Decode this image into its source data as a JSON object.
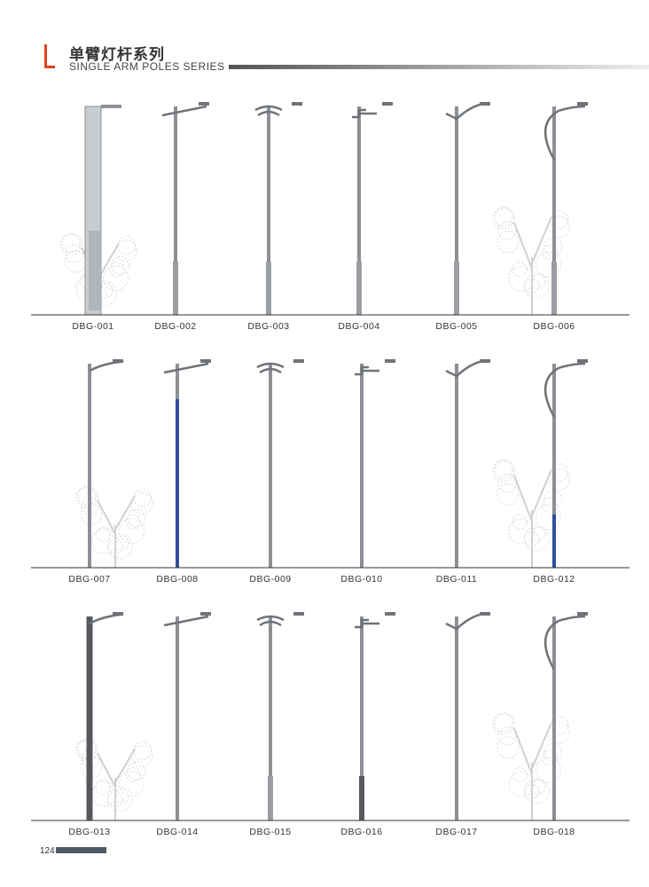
{
  "header": {
    "title_cn": "单臂灯杆系列",
    "title_en": "SINGLE ARM POLES SERIES",
    "accent_color": "#e0431c"
  },
  "rows": [
    {
      "items": [
        "DBG-001",
        "DBG-002",
        "DBG-003",
        "DBG-004",
        "DBG-005",
        "DBG-006"
      ]
    },
    {
      "items": [
        "DBG-007",
        "DBG-008",
        "DBG-009",
        "DBG-010",
        "DBG-011",
        "DBG-012"
      ]
    },
    {
      "items": [
        "DBG-013",
        "DBG-014",
        "DBG-015",
        "DBG-016",
        "DBG-017",
        "DBG-018"
      ]
    }
  ],
  "footer": {
    "page_number": "124"
  }
}
